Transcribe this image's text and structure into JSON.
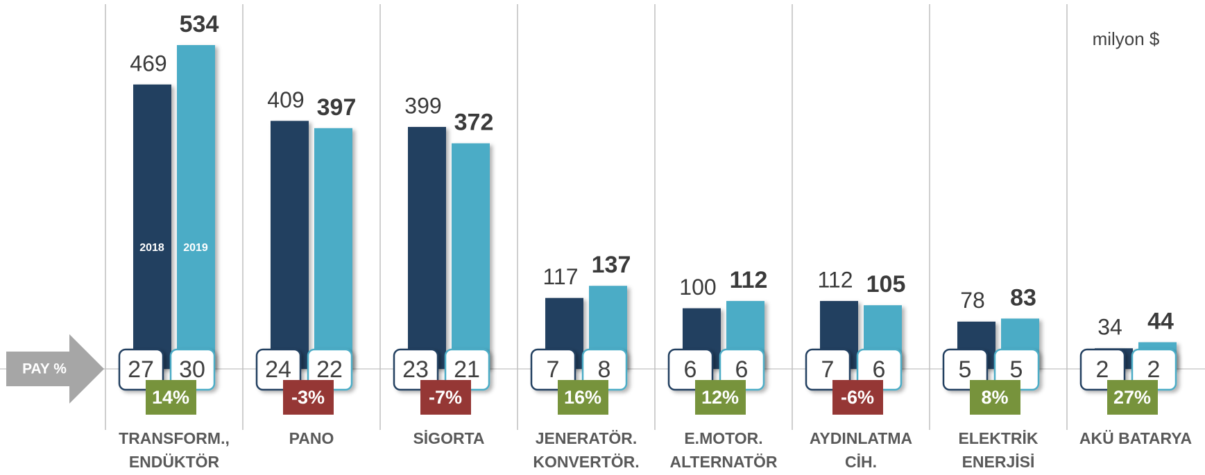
{
  "chart_data": {
    "type": "bar",
    "unit_label": "milyon $",
    "share_label": "PAY %",
    "categories": [
      [
        "TRANSFORM.,",
        "ENDÜKTÖR"
      ],
      [
        "PANO"
      ],
      [
        "SİGORTA"
      ],
      [
        "JENERATÖR.",
        "KONVERTÖR."
      ],
      [
        "E.MOTOR.",
        "ALTERNATÖR"
      ],
      [
        "AYDINLATMA",
        "CİH."
      ],
      [
        "ELEKTRİK",
        "ENERJİSİ"
      ],
      [
        "AKÜ BATARYA"
      ]
    ],
    "series": [
      {
        "name": "2018",
        "color": "#243f61",
        "values": [
          469,
          409,
          399,
          117,
          100,
          112,
          78,
          34
        ],
        "shares": [
          27,
          24,
          23,
          7,
          6,
          7,
          5,
          2
        ]
      },
      {
        "name": "2019",
        "color": "#4bacc6",
        "values": [
          534,
          397,
          372,
          137,
          112,
          105,
          83,
          44
        ],
        "shares": [
          30,
          22,
          21,
          8,
          6,
          6,
          5,
          2
        ]
      }
    ],
    "growth": {
      "values": [
        14,
        -3,
        -7,
        16,
        12,
        -6,
        8,
        27
      ],
      "value_labels": [
        "14%",
        "-3%",
        "-7%",
        "16%",
        "12%",
        "-6%",
        "8%",
        "27%"
      ],
      "positive_color": "#77933c",
      "negative_color": "#953735"
    }
  }
}
